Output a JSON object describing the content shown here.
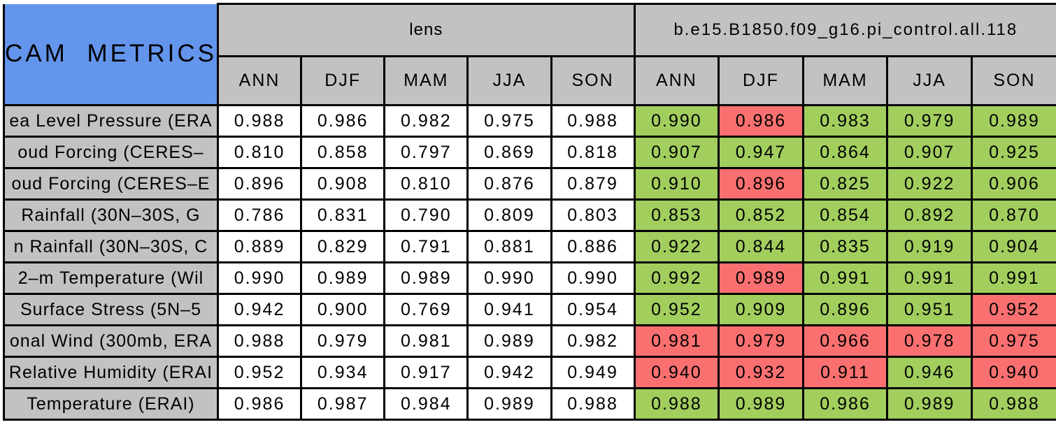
{
  "title": "CAM METRICS",
  "colors": {
    "header_blue": "#6495ED",
    "header_gray": "#C2C2C2",
    "good_green": "#A2CE5E",
    "bad_red": "#FA7070",
    "cell_white": "#FFFFFF",
    "border_black": "#000000"
  },
  "chart_data": {
    "type": "table",
    "title": "CAM METRICS",
    "column_groups": [
      "lens",
      "b.e15.B1850.f09_g16.pi_control.all.118"
    ],
    "columns": [
      "ANN",
      "DJF",
      "MAM",
      "JJA",
      "SON"
    ],
    "row_labels": [
      "ea Level Pressure (ERA",
      "oud Forcing (CERES–",
      "oud Forcing (CERES–E",
      "Rainfall (30N–30S, G",
      "n Rainfall (30N–30S, C",
      "2–m Temperature (Wil",
      "Surface Stress (5N–5",
      "onal Wind (300mb, ERA",
      "Relative Humidity (ERAI",
      "Temperature (ERAI)"
    ],
    "lens_values": [
      [
        "0.988",
        "0.986",
        "0.982",
        "0.975",
        "0.988"
      ],
      [
        "0.810",
        "0.858",
        "0.797",
        "0.869",
        "0.818"
      ],
      [
        "0.896",
        "0.908",
        "0.810",
        "0.876",
        "0.879"
      ],
      [
        "0.786",
        "0.831",
        "0.790",
        "0.809",
        "0.803"
      ],
      [
        "0.889",
        "0.829",
        "0.791",
        "0.881",
        "0.886"
      ],
      [
        "0.990",
        "0.989",
        "0.989",
        "0.990",
        "0.990"
      ],
      [
        "0.942",
        "0.900",
        "0.769",
        "0.941",
        "0.954"
      ],
      [
        "0.988",
        "0.979",
        "0.981",
        "0.989",
        "0.982"
      ],
      [
        "0.952",
        "0.934",
        "0.917",
        "0.942",
        "0.949"
      ],
      [
        "0.986",
        "0.987",
        "0.984",
        "0.989",
        "0.988"
      ]
    ],
    "control_values": [
      [
        "0.990",
        "0.986",
        "0.983",
        "0.979",
        "0.989"
      ],
      [
        "0.907",
        "0.947",
        "0.864",
        "0.907",
        "0.925"
      ],
      [
        "0.910",
        "0.896",
        "0.825",
        "0.922",
        "0.906"
      ],
      [
        "0.853",
        "0.852",
        "0.854",
        "0.892",
        "0.870"
      ],
      [
        "0.922",
        "0.844",
        "0.835",
        "0.919",
        "0.904"
      ],
      [
        "0.992",
        "0.989",
        "0.991",
        "0.991",
        "0.991"
      ],
      [
        "0.952",
        "0.909",
        "0.896",
        "0.951",
        "0.952"
      ],
      [
        "0.981",
        "0.979",
        "0.966",
        "0.978",
        "0.975"
      ],
      [
        "0.940",
        "0.932",
        "0.911",
        "0.946",
        "0.940"
      ],
      [
        "0.988",
        "0.989",
        "0.986",
        "0.989",
        "0.988"
      ]
    ],
    "control_status": [
      [
        "good",
        "bad",
        "good",
        "good",
        "good"
      ],
      [
        "good",
        "good",
        "good",
        "good",
        "good"
      ],
      [
        "good",
        "bad",
        "good",
        "good",
        "good"
      ],
      [
        "good",
        "good",
        "good",
        "good",
        "good"
      ],
      [
        "good",
        "good",
        "good",
        "good",
        "good"
      ],
      [
        "good",
        "bad",
        "good",
        "good",
        "good"
      ],
      [
        "good",
        "good",
        "good",
        "good",
        "bad"
      ],
      [
        "bad",
        "bad",
        "bad",
        "bad",
        "bad"
      ],
      [
        "bad",
        "bad",
        "bad",
        "good",
        "bad"
      ],
      [
        "good",
        "good",
        "good",
        "good",
        "good"
      ]
    ],
    "status_colors": {
      "good": "#A2CE5E",
      "bad": "#FA7070"
    },
    "legend_position": "none",
    "grid": "on"
  }
}
